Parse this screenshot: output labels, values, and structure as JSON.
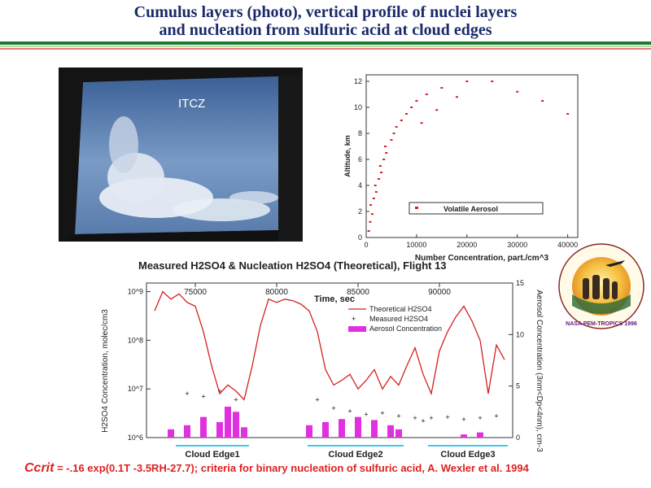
{
  "header": {
    "title_line1": "Cumulus layers (photo), vertical profile of nuclei layers",
    "title_line2": "and nucleation from sulfuric acid at cloud edges"
  },
  "photo": {
    "label": "ITCZ"
  },
  "footer": {
    "ccrit": "Ccrit",
    "formula": "= -.16 exp(0.1T -3.5RH-27.7);  criteria for binary nucleation of sulfuric acid,  A. Wexler et al. 1994"
  },
  "logo": {
    "text": "NASA PEM-TROPICS 1996"
  },
  "colors": {
    "title": "#1a2a6a",
    "red": "#d42020",
    "magenta": "#e030e0",
    "cyan": "#40c8e8",
    "footer": "#e02020"
  },
  "chart_data": [
    {
      "type": "scatter",
      "xlabel": "Number Concentration, part./cm^3",
      "ylabel": "Altitude, km",
      "xlim": [
        0,
        42000
      ],
      "ylim": [
        0,
        12.5
      ],
      "x_ticks": [
        "0",
        "10000",
        "20000",
        "30000",
        "40000"
      ],
      "y_ticks": [
        "0",
        "2",
        "4",
        "6",
        "8",
        "10",
        "12"
      ],
      "legend": [
        "Volatile Aerosol"
      ],
      "legend_position": "bottom-right",
      "series": [
        {
          "name": "Volatile Aerosol",
          "points": [
            [
              500,
              0.5
            ],
            [
              800,
              1.2
            ],
            [
              1200,
              1.8
            ],
            [
              900,
              2.5
            ],
            [
              1500,
              3.0
            ],
            [
              2000,
              3.5
            ],
            [
              1800,
              4.0
            ],
            [
              2500,
              4.5
            ],
            [
              3000,
              5.0
            ],
            [
              2800,
              5.5
            ],
            [
              3500,
              6.0
            ],
            [
              4000,
              6.5
            ],
            [
              3800,
              7.0
            ],
            [
              5000,
              7.5
            ],
            [
              5500,
              8.0
            ],
            [
              6000,
              8.5
            ],
            [
              7000,
              9.0
            ],
            [
              8000,
              9.5
            ],
            [
              9000,
              10.0
            ],
            [
              10000,
              10.5
            ],
            [
              12000,
              11.0
            ],
            [
              15000,
              11.5
            ],
            [
              20000,
              12.0
            ],
            [
              25000,
              12.0
            ],
            [
              30000,
              11.2
            ],
            [
              35000,
              10.5
            ],
            [
              40000,
              9.5
            ],
            [
              18000,
              10.8
            ],
            [
              14000,
              9.8
            ],
            [
              11000,
              8.8
            ]
          ]
        }
      ]
    },
    {
      "type": "line",
      "title": "Measured H2SO4 & Nucleation H2SO4 (Theoretical),    Flight 13",
      "xlabel": "Time, sec",
      "ylabel": "H2SO4 Concentration, molec/cm3",
      "y2label": "Aerosol Concentration (3nm<Dp<4nm), cm-3",
      "xlim": [
        72000,
        94500
      ],
      "ylim": [
        1000000,
        1500000000
      ],
      "y_scale": "log",
      "y2lim": [
        0,
        15
      ],
      "x_ticks": [
        "75000",
        "80000",
        "85000",
        "90000"
      ],
      "y_ticks": [
        "10^9",
        "10^8",
        "10^7",
        "10^6"
      ],
      "y2_ticks": [
        "0",
        "5",
        "10",
        "15"
      ],
      "legend": [
        "Theoretical H2SO4",
        "Measured H2SO4",
        "Aerosol Concentration"
      ],
      "legend_position": "top-right",
      "series": [
        {
          "name": "Theoretical H2SO4",
          "x": [
            72500,
            73000,
            73500,
            74000,
            74500,
            75000,
            75500,
            76000,
            76500,
            77000,
            77500,
            78000,
            78500,
            79000,
            79500,
            80000,
            80500,
            81000,
            81500,
            82000,
            82500,
            83000,
            83500,
            84000,
            84500,
            85000,
            85500,
            86000,
            86500,
            87000,
            87500,
            88000,
            88500,
            89000,
            89500,
            90000,
            90500,
            91000,
            91500,
            92000,
            92500,
            93000,
            93500,
            94000
          ],
          "values": [
            400000000,
            1000000000,
            700000000,
            900000000,
            600000000,
            500000000,
            150000000,
            30000000,
            8000000,
            12000000,
            9000000,
            6000000,
            30000000,
            200000000,
            700000000,
            600000000,
            700000000,
            650000000,
            550000000,
            400000000,
            150000000,
            25000000,
            12000000,
            15000000,
            20000000,
            10000000,
            15000000,
            25000000,
            10000000,
            18000000,
            12000000,
            30000000,
            70000000,
            20000000,
            8000000,
            60000000,
            150000000,
            300000000,
            500000000,
            250000000,
            100000000,
            8000000,
            80000000,
            40000000
          ]
        },
        {
          "name": "Measured H2SO4",
          "x": [
            74500,
            75500,
            76500,
            77500,
            82500,
            83500,
            84500,
            85500,
            86500,
            87500,
            88500,
            89000,
            89500,
            90500,
            91500,
            92500,
            93500
          ],
          "values": [
            8000000,
            7000000,
            9000000,
            6000000,
            6000000,
            4000000,
            3500000,
            3000000,
            3200000,
            2800000,
            2500000,
            2200000,
            2500000,
            2600000,
            2400000,
            2500000,
            2800000
          ]
        },
        {
          "name": "Aerosol Concentration",
          "x": [
            73500,
            74500,
            75500,
            76500,
            77000,
            77500,
            78000,
            82000,
            83000,
            84000,
            85000,
            86000,
            87000,
            87500,
            91500,
            92500
          ],
          "values": [
            0.8,
            1.2,
            2.0,
            1.5,
            3.0,
            2.5,
            1.0,
            1.2,
            1.5,
            1.8,
            2.0,
            1.7,
            1.2,
            0.8,
            0.3,
            0.5
          ]
        }
      ],
      "annotations": [
        {
          "label": "Cloud Edge1",
          "x_start": 73800,
          "x_end": 78300
        },
        {
          "label": "Cloud Edge2",
          "x_start": 81900,
          "x_end": 87800
        },
        {
          "label": "Cloud Edge3",
          "x_start": 89300,
          "x_end": 94200
        }
      ]
    }
  ]
}
